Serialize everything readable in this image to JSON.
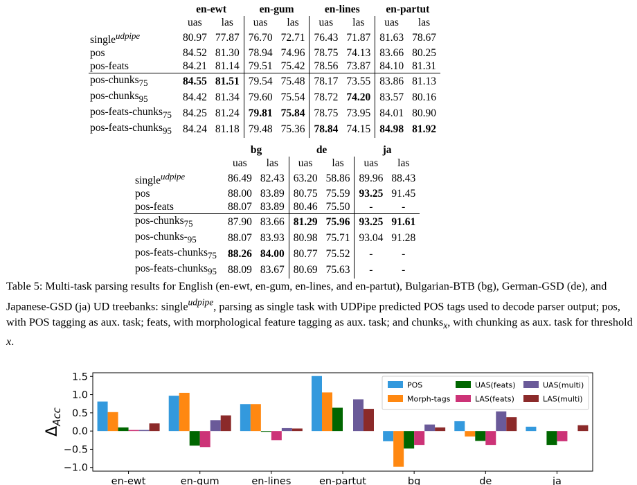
{
  "table1": {
    "groups": [
      "en-ewt",
      "en-gum",
      "en-lines",
      "en-partut"
    ],
    "subheaders": [
      "uas",
      "las"
    ],
    "rows": [
      {
        "label": "single",
        "sup": "udpipe",
        "sub": "",
        "values": [
          "80.97",
          "77.87",
          "76.70",
          "72.71",
          "76.43",
          "71.87",
          "81.63",
          "78.67"
        ],
        "bold": []
      },
      {
        "label": "pos",
        "sup": "",
        "sub": "",
        "values": [
          "84.52",
          "81.30",
          "78.94",
          "74.96",
          "78.75",
          "74.13",
          "83.66",
          "80.25"
        ],
        "bold": []
      },
      {
        "label": "pos-feats",
        "sup": "",
        "sub": "",
        "values": [
          "84.21",
          "81.14",
          "79.51",
          "75.42",
          "78.56",
          "73.87",
          "84.10",
          "81.31"
        ],
        "bold": []
      },
      {
        "label": "pos-chunks",
        "sup": "",
        "sub": "75",
        "values": [
          "84.55",
          "81.51",
          "79.54",
          "75.48",
          "78.17",
          "73.55",
          "83.86",
          "81.13"
        ],
        "bold": [
          0,
          1
        ],
        "sep": true
      },
      {
        "label": "pos-chunks",
        "sup": "",
        "sub": "95",
        "values": [
          "84.42",
          "81.34",
          "79.60",
          "75.54",
          "78.72",
          "74.20",
          "83.57",
          "80.16"
        ],
        "bold": [
          5
        ]
      },
      {
        "label": "pos-feats-chunks",
        "sup": "",
        "sub": "75",
        "values": [
          "84.25",
          "81.24",
          "79.81",
          "75.84",
          "78.75",
          "73.95",
          "84.01",
          "80.90"
        ],
        "bold": [
          2,
          3
        ]
      },
      {
        "label": "pos-feats-chunks",
        "sup": "",
        "sub": "95",
        "values": [
          "84.24",
          "81.18",
          "79.48",
          "75.36",
          "78.84",
          "74.15",
          "84.98",
          "81.92"
        ],
        "bold": [
          4,
          6,
          7
        ]
      }
    ]
  },
  "table2": {
    "groups": [
      "bg",
      "de",
      "ja"
    ],
    "subheaders": [
      "uas",
      "las"
    ],
    "rows": [
      {
        "label": "single",
        "sup": "udpipe",
        "sub": "",
        "values": [
          "86.49",
          "82.43",
          "63.20",
          "58.86",
          "89.96",
          "88.43"
        ],
        "bold": []
      },
      {
        "label": "pos",
        "sup": "",
        "sub": "",
        "values": [
          "88.00",
          "83.89",
          "80.75",
          "75.59",
          "93.25",
          "91.45"
        ],
        "bold": [
          4
        ]
      },
      {
        "label": "pos-feats",
        "sup": "",
        "sub": "",
        "values": [
          "88.07",
          "83.89",
          "80.46",
          "75.50",
          "-",
          "-"
        ],
        "bold": []
      },
      {
        "label": "pos-chunks",
        "sup": "",
        "sub": "75",
        "values": [
          "87.90",
          "83.66",
          "81.29",
          "75.96",
          "93.25",
          "91.61"
        ],
        "bold": [
          2,
          3,
          4,
          5
        ],
        "sep": true
      },
      {
        "label": "pos-chunks-",
        "sup": "",
        "sub": "95",
        "values": [
          "88.07",
          "83.93",
          "80.98",
          "75.71",
          "93.04",
          "91.28"
        ],
        "bold": []
      },
      {
        "label": "pos-feats-chunks",
        "sup": "",
        "sub": "75",
        "values": [
          "88.26",
          "84.00",
          "80.77",
          "75.52",
          "-",
          "-"
        ],
        "bold": [
          0,
          1
        ]
      },
      {
        "label": "pos-feats-chunks",
        "sup": "",
        "sub": "95",
        "values": [
          "88.09",
          "83.67",
          "80.69",
          "75.63",
          "-",
          "-"
        ],
        "bold": []
      }
    ]
  },
  "caption": {
    "prefix": "Table 5: Multi-task parsing results for English (en-ewt, en-gum, en-lines, and en-partut), Bulgarian-BTB (bg), German-GSD (de), and Japanese-GSD (ja) UD treebanks: single",
    "sup": "udpipe",
    "middle": ", parsing as single task with UDPipe predicted POS tags used to decode parser output; pos, with POS tagging as aux. task; feats, with morphological feature tagging as aux. task; and chunks",
    "sub": "x",
    "middle2": ", with chunking as aux. task for threshold ",
    "var": "x",
    "suffix": "."
  },
  "chart_data": {
    "type": "bar",
    "categories": [
      "en-ewt",
      "en-gum",
      "en-lines",
      "en-partut",
      "bg",
      "de",
      "ja"
    ],
    "ylabel": "Δ",
    "ylabel_sub": "Acc",
    "ylim": [
      -1.1,
      1.6
    ],
    "yticks": [
      1.5,
      1.0,
      0.5,
      0.0,
      -0.5,
      -1.0
    ],
    "ytick_labels": [
      "1.5",
      "1.0",
      "0.5",
      "0.0",
      "−0.5",
      "−1.0"
    ],
    "legend_position": "top-right",
    "series": [
      {
        "name": "POS",
        "color": "#3399dd",
        "values": [
          0.81,
          0.97,
          0.74,
          1.51,
          -0.28,
          0.27,
          0.12
        ]
      },
      {
        "name": "Morph-tags",
        "color": "#ff8811",
        "values": [
          0.52,
          1.05,
          0.74,
          1.06,
          -0.98,
          -0.15,
          null
        ]
      },
      {
        "name": "UAS(feats)",
        "color": "#006600",
        "values": [
          0.1,
          -0.4,
          -0.02,
          0.64,
          -0.48,
          -0.27,
          -0.38
        ]
      },
      {
        "name": "LAS(feats)",
        "color": "#cc3377",
        "values": [
          0.03,
          -0.44,
          -0.25,
          null,
          -0.38,
          -0.38,
          -0.28
        ]
      },
      {
        "name": "UAS(multi)",
        "color": "#6a5a99",
        "values": [
          0.03,
          0.3,
          0.08,
          0.87,
          0.18,
          0.54,
          null
        ]
      },
      {
        "name": "LAS(multi)",
        "color": "#8b2a2a",
        "values": [
          0.21,
          0.43,
          0.07,
          0.61,
          0.1,
          0.38,
          0.16
        ]
      }
    ]
  }
}
